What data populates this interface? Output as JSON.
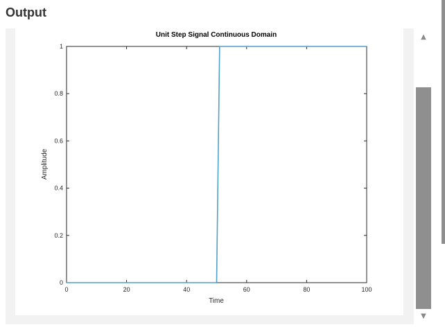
{
  "panel": {
    "title": "Output"
  },
  "scrollbar": {
    "up_icon": "triangle-up-icon",
    "down_icon": "triangle-down-icon",
    "up_glyph": "▲",
    "down_glyph": "▼"
  },
  "chart_data": {
    "type": "line",
    "title": "Unit Step Signal Continuous Domain",
    "xlabel": "Time",
    "ylabel": "Amplitude",
    "xlim": [
      0,
      100
    ],
    "ylim": [
      0,
      1
    ],
    "xticks": [
      0,
      20,
      40,
      60,
      80,
      100
    ],
    "yticks": [
      0,
      0.2,
      0.4,
      0.6,
      0.8,
      1
    ],
    "xtick_labels": [
      "0",
      "20",
      "40",
      "60",
      "80",
      "100"
    ],
    "ytick_labels": [
      "0",
      "0.2",
      "0.4",
      "0.6",
      "0.8",
      "1"
    ],
    "grid": false,
    "series": [
      {
        "color": "#4f9fc8",
        "x": [
          0,
          50,
          51,
          100
        ],
        "y": [
          0,
          0,
          1,
          1
        ]
      }
    ]
  }
}
